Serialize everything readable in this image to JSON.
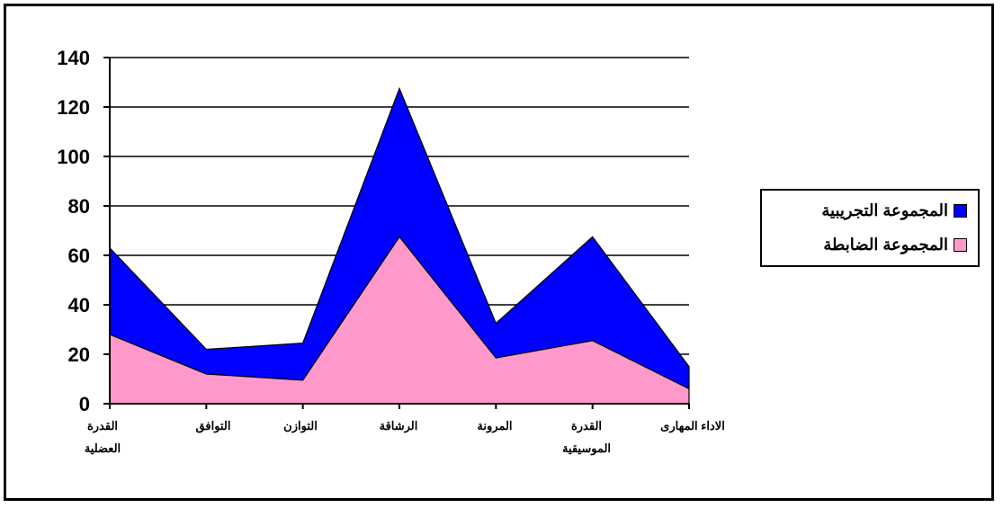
{
  "chart_data": {
    "type": "area",
    "stacked": true,
    "categories": [
      [
        "القدرة",
        "العضلية"
      ],
      [
        "التوافق"
      ],
      [
        "التوازن"
      ],
      [
        "الرشاقة"
      ],
      [
        "المرونة"
      ],
      [
        "القدرة",
        "الموسيقية"
      ],
      [
        "الاداء المهارى"
      ]
    ],
    "ylim": [
      0,
      140
    ],
    "yticks": [
      0,
      20,
      40,
      60,
      80,
      100,
      120,
      140
    ],
    "grid": true,
    "legend_position": "right",
    "series": [
      {
        "name": "المجموعة الضابطة",
        "color": "#ff99cc",
        "values": [
          28,
          12,
          9.5,
          67.5,
          18.5,
          25.5,
          6
        ]
      },
      {
        "name": "المجموعة التجريبية",
        "color": "#0000ff",
        "values": [
          35,
          10,
          15,
          60,
          14,
          42,
          9
        ]
      }
    ]
  }
}
